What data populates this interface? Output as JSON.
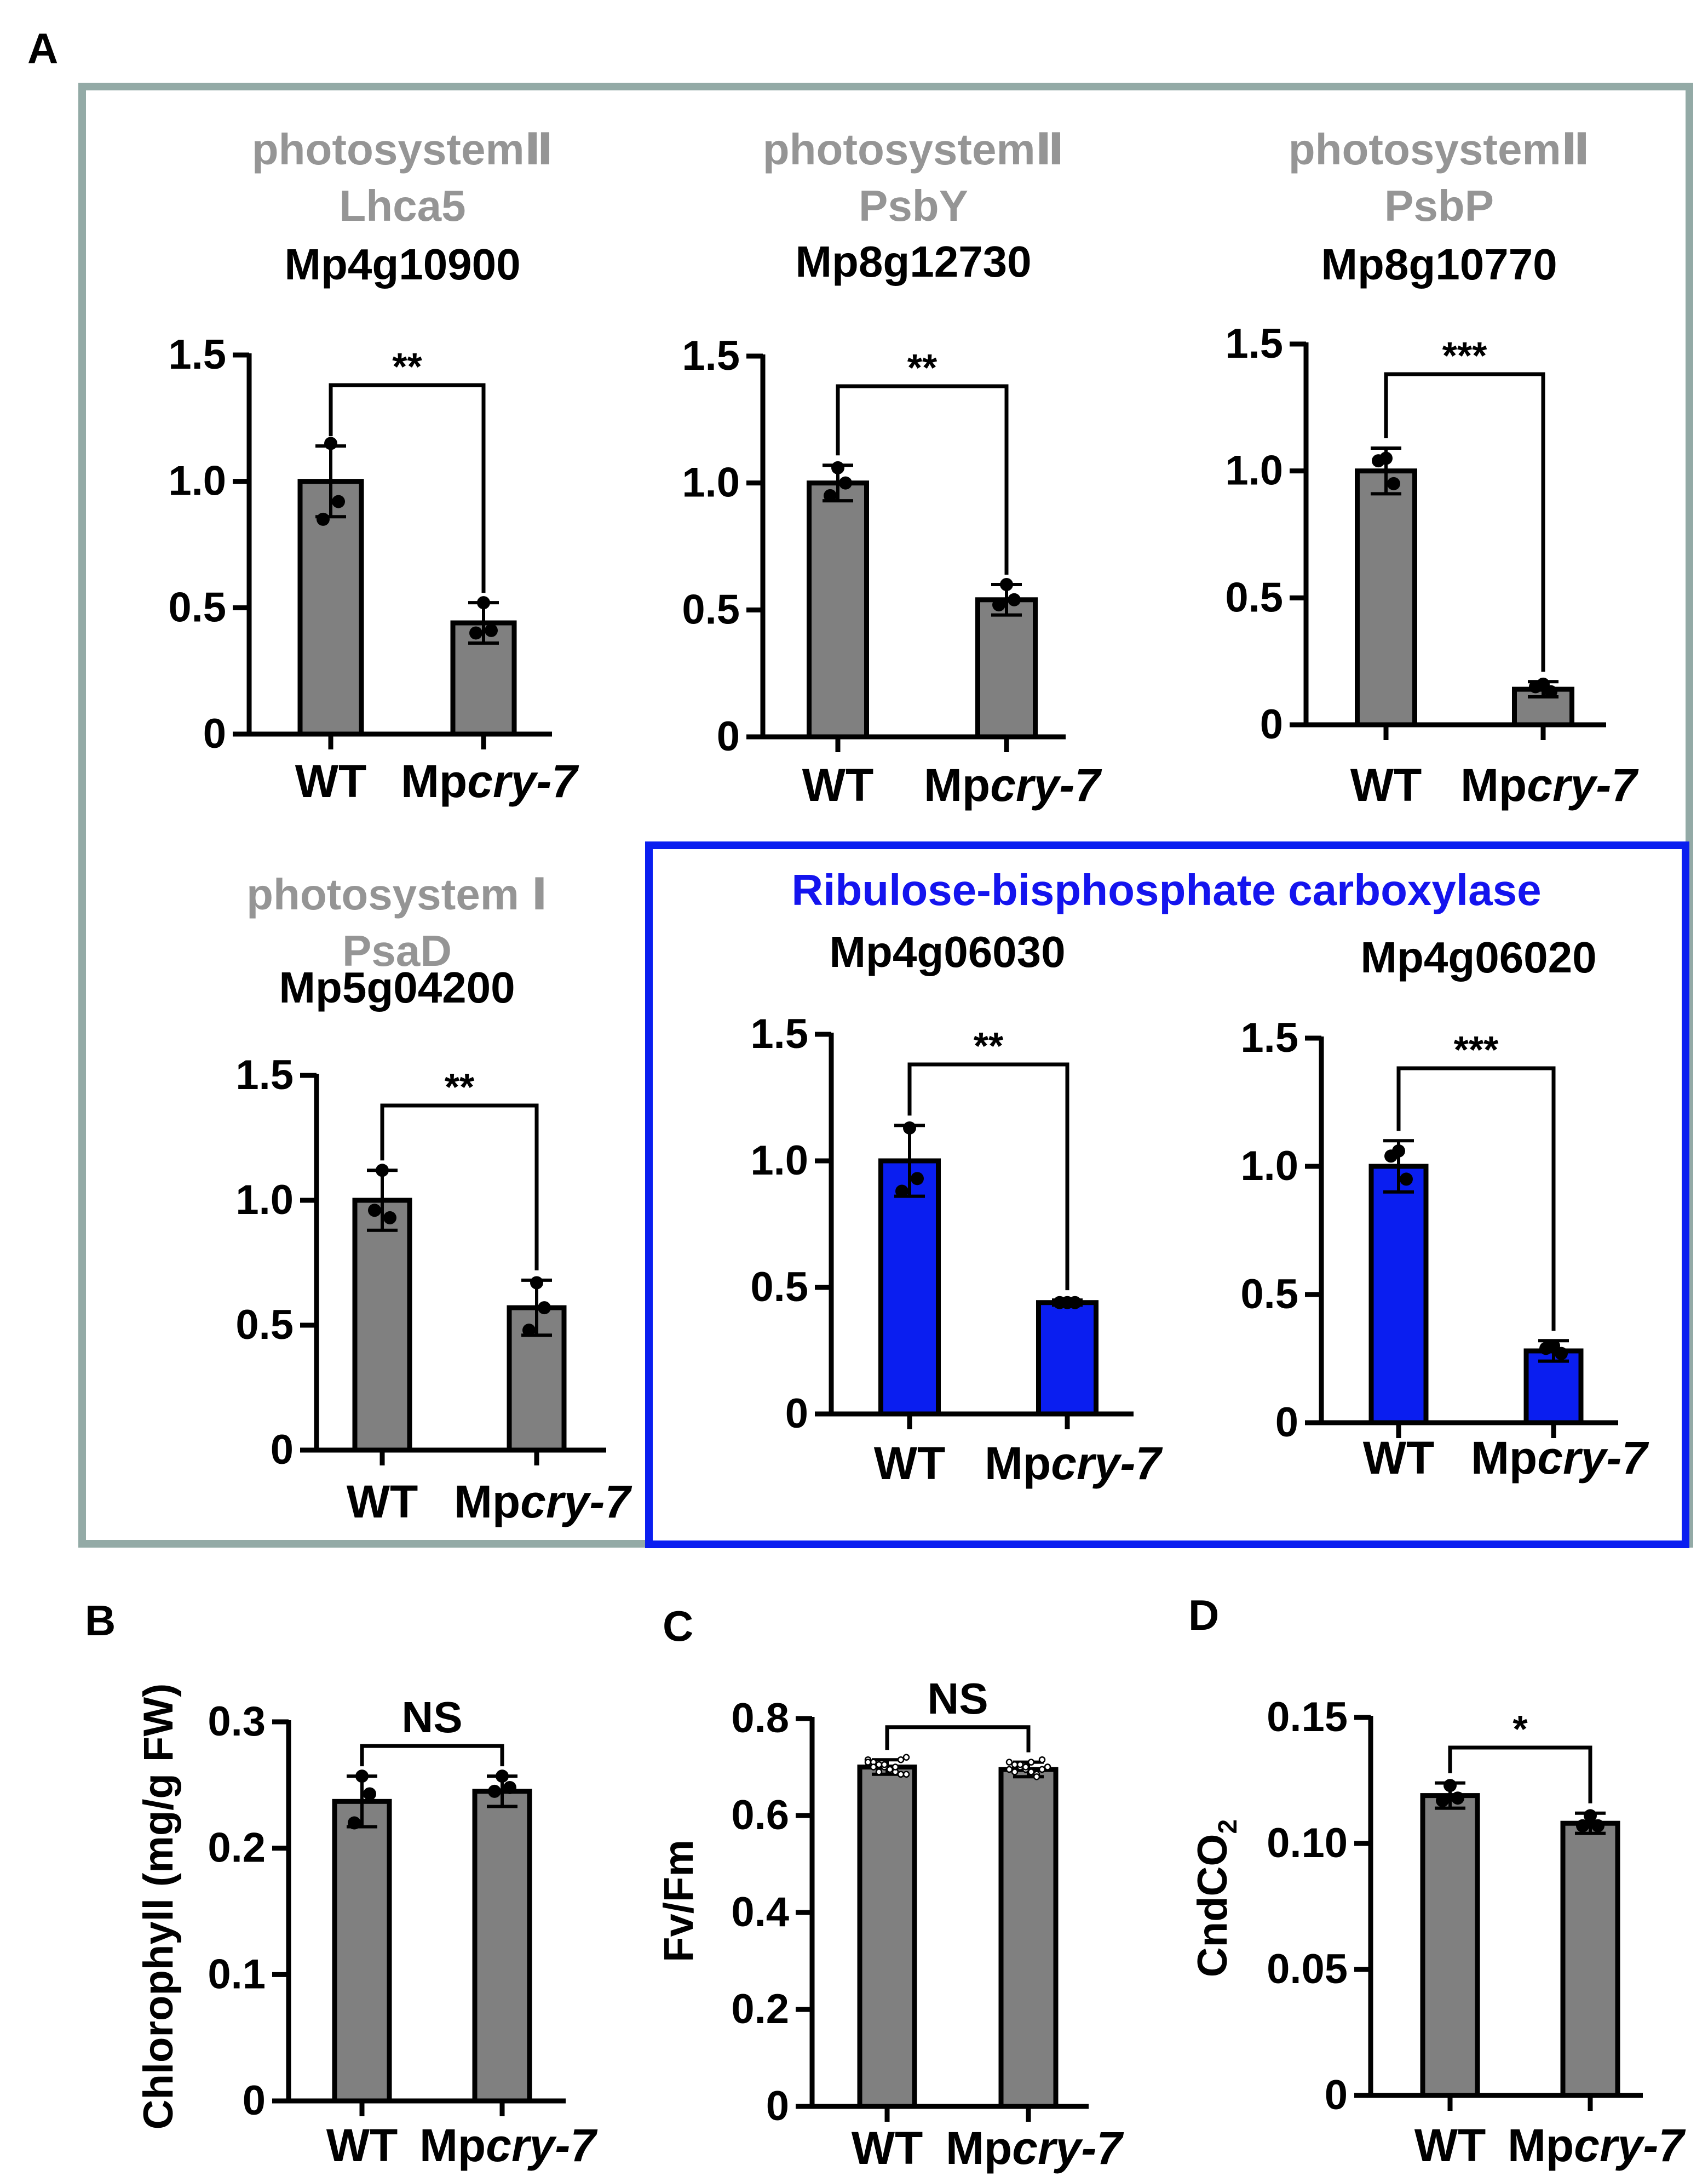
{
  "figure": {
    "panel_a_label": "A",
    "panel_b_label": "B",
    "panel_c_label": "C",
    "panel_d_label": "D",
    "rubisco_header": "Ribulose-bisphosphate carboxylase"
  },
  "colors": {
    "gray_bar": "#808080",
    "blue_bar": "#0a1ef0",
    "header_gray": "#959595",
    "frame_gray": "#93aaa6",
    "frame_blue": "#0a1ef0",
    "rubisco_text": "#1414ee"
  },
  "chart_data": [
    {
      "id": "lhca5",
      "type": "bar",
      "group": "A",
      "title_lines": [
        "photosystemⅡ",
        "Lhca5"
      ],
      "gene": "Mp4g10900",
      "categories": [
        "WT",
        "Mpcry-7"
      ],
      "values": [
        1.0,
        0.44
      ],
      "errors": [
        0.14,
        0.08
      ],
      "points": [
        [
          1.15,
          0.92,
          0.85
        ],
        [
          0.52,
          0.41,
          0.4
        ]
      ],
      "ylim": [
        0,
        1.5
      ],
      "yticks": [
        0,
        0.5,
        1.0,
        1.5
      ],
      "ytick_labels": [
        "0",
        "0.5",
        "1.0",
        "1.5"
      ],
      "significance": "**",
      "ylabel": "",
      "color": "gray"
    },
    {
      "id": "psby",
      "type": "bar",
      "group": "A",
      "title_lines": [
        "photosystemⅡ",
        "PsbY"
      ],
      "gene": "Mp8g12730",
      "categories": [
        "WT",
        "Mpcry-7"
      ],
      "values": [
        1.0,
        0.54
      ],
      "errors": [
        0.07,
        0.06
      ],
      "points": [
        [
          1.06,
          1.0,
          0.95
        ],
        [
          0.6,
          0.54,
          0.52
        ]
      ],
      "ylim": [
        0,
        1.5
      ],
      "yticks": [
        0,
        0.5,
        1.0,
        1.5
      ],
      "ytick_labels": [
        "0",
        "0.5",
        "1.0",
        "1.5"
      ],
      "significance": "**",
      "ylabel": "",
      "color": "gray"
    },
    {
      "id": "psbp",
      "type": "bar",
      "group": "A",
      "title_lines": [
        "photosystemⅡ",
        "PsbP"
      ],
      "gene": "Mp8g10770",
      "categories": [
        "WT",
        "Mpcry-7"
      ],
      "values": [
        1.0,
        0.14
      ],
      "errors": [
        0.09,
        0.03
      ],
      "points": [
        [
          1.05,
          0.95,
          1.04
        ],
        [
          0.16,
          0.13,
          0.15
        ]
      ],
      "ylim": [
        0,
        1.5
      ],
      "yticks": [
        0,
        0.5,
        1.0,
        1.5
      ],
      "ytick_labels": [
        "0",
        "0.5",
        "1.0",
        "1.5"
      ],
      "significance": "***",
      "ylabel": "",
      "color": "gray"
    },
    {
      "id": "psad",
      "type": "bar",
      "group": "A",
      "title_lines": [
        "photosystem Ⅰ",
        "PsaD"
      ],
      "gene": "Mp5g04200",
      "categories": [
        "WT",
        "Mpcry-7"
      ],
      "values": [
        1.0,
        0.57
      ],
      "errors": [
        0.12,
        0.11
      ],
      "points": [
        [
          1.12,
          0.93,
          0.96
        ],
        [
          0.67,
          0.57,
          0.48
        ]
      ],
      "ylim": [
        0,
        1.5
      ],
      "yticks": [
        0,
        0.5,
        1.0,
        1.5
      ],
      "ytick_labels": [
        "0",
        "0.5",
        "1.0",
        "1.5"
      ],
      "significance": "**",
      "ylabel": "",
      "color": "gray"
    },
    {
      "id": "rbc1",
      "type": "bar",
      "group": "A-rubisco",
      "title_lines": [],
      "gene": "Mp4g06030",
      "categories": [
        "WT",
        "Mpcry-7"
      ],
      "values": [
        1.0,
        0.44
      ],
      "errors": [
        0.14,
        0.01
      ],
      "points": [
        [
          1.13,
          0.93,
          0.88
        ],
        [
          0.44,
          0.44,
          0.44
        ]
      ],
      "ylim": [
        0,
        1.5
      ],
      "yticks": [
        0,
        0.5,
        1.0,
        1.5
      ],
      "ytick_labels": [
        "0",
        "0.5",
        "1.0",
        "1.5"
      ],
      "significance": "**",
      "ylabel": "",
      "color": "blue"
    },
    {
      "id": "rbc2",
      "type": "bar",
      "group": "A-rubisco",
      "title_lines": [],
      "gene": "Mp4g06020",
      "categories": [
        "WT",
        "Mpcry-7"
      ],
      "values": [
        1.0,
        0.28
      ],
      "errors": [
        0.1,
        0.04
      ],
      "points": [
        [
          1.06,
          0.95,
          1.04
        ],
        [
          0.3,
          0.27,
          0.29
        ]
      ],
      "ylim": [
        0,
        1.5
      ],
      "yticks": [
        0,
        0.5,
        1.0,
        1.5
      ],
      "ytick_labels": [
        "0",
        "0.5",
        "1.0",
        "1.5"
      ],
      "significance": "***",
      "ylabel": "",
      "color": "blue"
    },
    {
      "id": "chl",
      "type": "bar",
      "group": "B",
      "title_lines": [],
      "gene": "",
      "categories": [
        "WT",
        "Mpcry-7"
      ],
      "values": [
        0.237,
        0.245
      ],
      "errors": [
        0.02,
        0.012
      ],
      "points": [
        [
          0.257,
          0.243,
          0.22
        ],
        [
          0.257,
          0.248,
          0.245
        ]
      ],
      "ylim": [
        0,
        0.3
      ],
      "yticks": [
        0,
        0.1,
        0.2,
        0.3
      ],
      "ytick_labels": [
        "0",
        "0.1",
        "0.2",
        "0.3"
      ],
      "significance": "NS",
      "ylabel": "Chlorophyll (mg/g FW)",
      "color": "gray"
    },
    {
      "id": "fvfm",
      "type": "bar",
      "group": "C",
      "title_lines": [],
      "gene": "",
      "categories": [
        "WT",
        "Mpcry-7"
      ],
      "values": [
        0.7,
        0.695
      ],
      "errors": [
        0.015,
        0.015
      ],
      "points": [
        [
          0.715,
          0.71,
          0.705,
          0.7,
          0.695,
          0.69,
          0.685,
          0.72,
          0.71,
          0.7,
          0.69,
          0.705,
          0.695,
          0.7,
          0.715,
          0.685
        ],
        [
          0.71,
          0.705,
          0.7,
          0.695,
          0.69,
          0.685,
          0.715,
          0.7,
          0.695,
          0.69,
          0.705,
          0.7,
          0.71,
          0.68,
          0.695,
          0.7
        ]
      ],
      "ylim": [
        0,
        0.8
      ],
      "yticks": [
        0,
        0.2,
        0.4,
        0.6,
        0.8
      ],
      "ytick_labels": [
        "0",
        "0.2",
        "0.4",
        "0.6",
        "0.8"
      ],
      "significance": "NS",
      "ylabel": "Fv/Fm",
      "color": "gray"
    },
    {
      "id": "cnd",
      "type": "bar",
      "group": "D",
      "title_lines": [],
      "gene": "",
      "categories": [
        "WT",
        "Mpcry-7"
      ],
      "values": [
        0.119,
        0.108
      ],
      "errors": [
        0.005,
        0.004
      ],
      "points": [
        [
          0.123,
          0.118,
          0.117
        ],
        [
          0.111,
          0.107,
          0.107
        ]
      ],
      "ylim": [
        0,
        0.15
      ],
      "yticks": [
        0,
        0.05,
        0.1,
        0.15
      ],
      "ytick_labels": [
        "0",
        "0.05",
        "0.10",
        "0.15"
      ],
      "significance": "*",
      "ylabel": "CndCO2",
      "color": "gray"
    }
  ]
}
